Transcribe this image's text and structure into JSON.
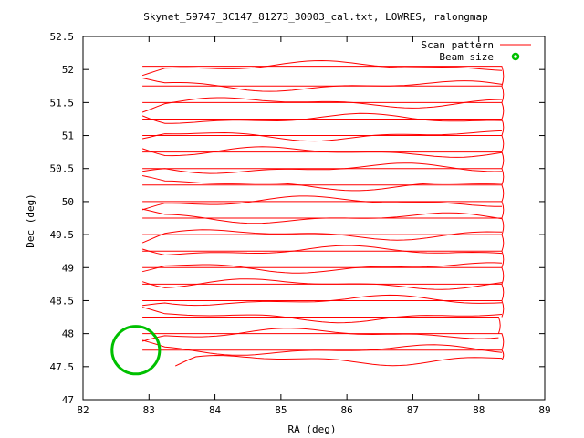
{
  "chart_data": {
    "type": "line",
    "title": "Skynet_59747_3C147_81273_30003_cal.txt, LOWRES, ralongmap",
    "xlabel": "RA (deg)",
    "ylabel": "Dec (deg)",
    "xlim": [
      82,
      89
    ],
    "ylim": [
      47,
      52.5
    ],
    "xticks": [
      "82",
      "83",
      "84",
      "85",
      "86",
      "87",
      "88",
      "89"
    ],
    "yticks": [
      "47",
      "47.5",
      "48",
      "48.5",
      "49",
      "49.5",
      "50",
      "50.5",
      "51",
      "51.5",
      "52",
      "52.5"
    ],
    "legend_position": "top-right",
    "grid": false,
    "series": [
      {
        "name": "Scan pattern",
        "color": "#ff0000",
        "scan_rows": [
          {
            "dec": 47.6,
            "x_start": 83.4,
            "x_end": 88.35
          },
          {
            "dec": 47.75,
            "x_start": 82.9,
            "x_end": 88.35
          },
          {
            "dec": 48.0,
            "x_start": 82.9,
            "x_end": 88.3
          },
          {
            "dec": 48.25,
            "x_start": 82.9,
            "x_end": 88.35
          },
          {
            "dec": 48.5,
            "x_start": 82.9,
            "x_end": 88.35
          },
          {
            "dec": 48.75,
            "x_start": 82.9,
            "x_end": 88.35
          },
          {
            "dec": 49.0,
            "x_start": 82.9,
            "x_end": 88.35
          },
          {
            "dec": 49.25,
            "x_start": 82.9,
            "x_end": 88.35
          },
          {
            "dec": 49.5,
            "x_start": 82.9,
            "x_end": 88.35
          },
          {
            "dec": 49.75,
            "x_start": 82.9,
            "x_end": 88.35
          },
          {
            "dec": 50.0,
            "x_start": 82.9,
            "x_end": 88.35
          },
          {
            "dec": 50.25,
            "x_start": 82.9,
            "x_end": 88.35
          },
          {
            "dec": 50.5,
            "x_start": 82.9,
            "x_end": 88.35
          },
          {
            "dec": 50.75,
            "x_start": 82.9,
            "x_end": 88.35
          },
          {
            "dec": 51.0,
            "x_start": 82.9,
            "x_end": 88.35
          },
          {
            "dec": 51.25,
            "x_start": 82.9,
            "x_end": 88.35
          },
          {
            "dec": 51.5,
            "x_start": 82.9,
            "x_end": 88.35
          },
          {
            "dec": 51.75,
            "x_start": 82.9,
            "x_end": 88.35
          },
          {
            "dec": 52.05,
            "x_start": 82.9,
            "x_end": 88.35
          }
        ]
      },
      {
        "name": "Beam size",
        "color": "#00c000",
        "circle": {
          "ra": 82.8,
          "dec": 47.75,
          "radius_dec": 0.36
        }
      }
    ]
  }
}
